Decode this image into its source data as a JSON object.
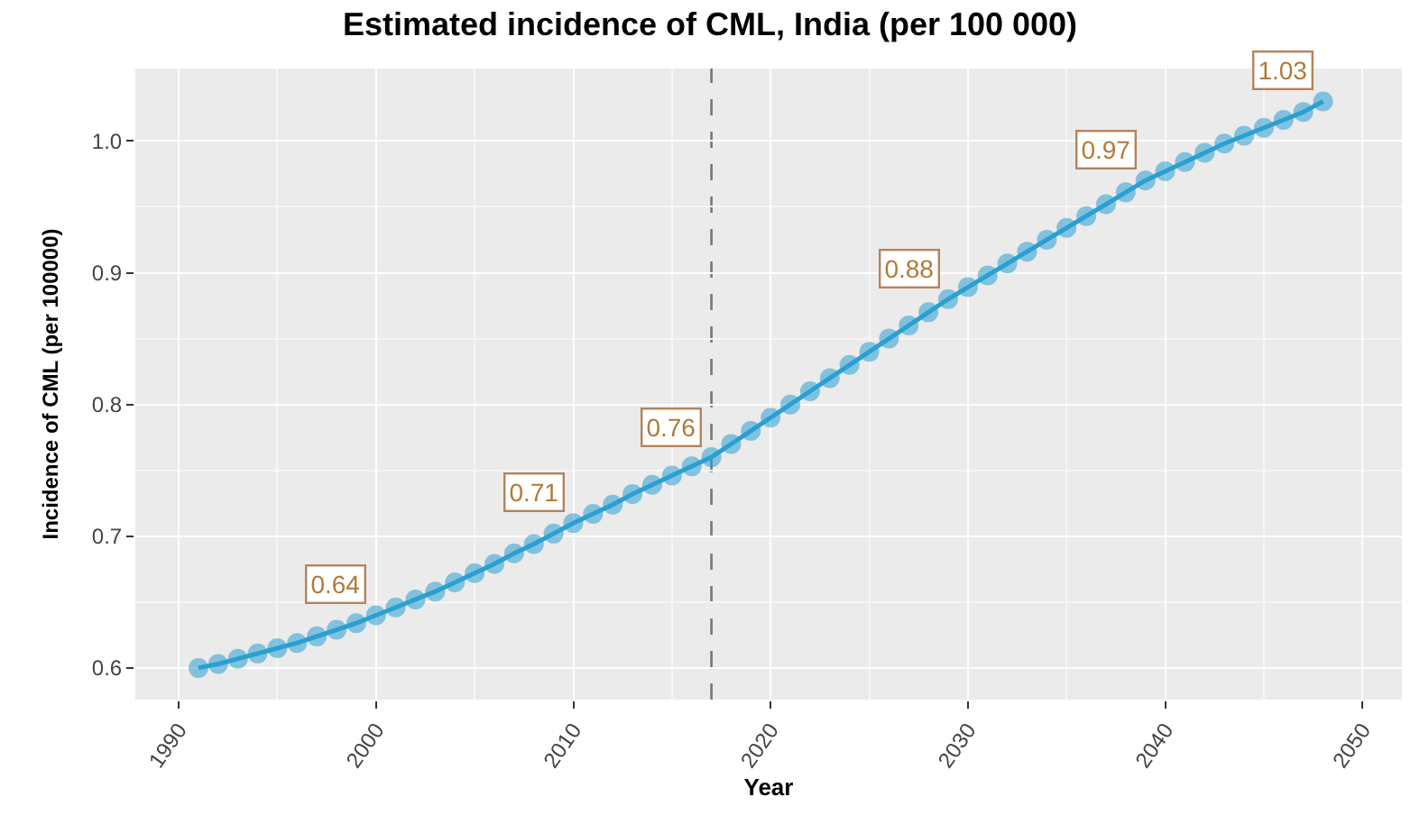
{
  "chart_data": {
    "type": "line",
    "title": "Estimated incidence of CML, India (per 100 000)",
    "xlabel": "Year",
    "ylabel": "Incidence of CML (per 100000)",
    "x": [
      1991,
      1992,
      1993,
      1994,
      1995,
      1996,
      1997,
      1998,
      1999,
      2000,
      2001,
      2002,
      2003,
      2004,
      2005,
      2006,
      2007,
      2008,
      2009,
      2010,
      2011,
      2012,
      2013,
      2014,
      2015,
      2016,
      2017,
      2018,
      2019,
      2020,
      2021,
      2022,
      2023,
      2024,
      2025,
      2026,
      2027,
      2028,
      2029,
      2030,
      2031,
      2032,
      2033,
      2034,
      2035,
      2036,
      2037,
      2038,
      2039,
      2040,
      2041,
      2042,
      2043,
      2044,
      2045,
      2046,
      2047,
      2048
    ],
    "series": [
      {
        "color": "#2a9fd2",
        "values": [
          0.6,
          0.603,
          0.607,
          0.611,
          0.615,
          0.619,
          0.624,
          0.629,
          0.634,
          0.64,
          0.646,
          0.652,
          0.658,
          0.665,
          0.672,
          0.679,
          0.687,
          0.694,
          0.702,
          0.71,
          0.717,
          0.724,
          0.732,
          0.739,
          0.746,
          0.753,
          0.76,
          0.77,
          0.78,
          0.79,
          0.8,
          0.81,
          0.82,
          0.83,
          0.84,
          0.85,
          0.86,
          0.87,
          0.88,
          0.889,
          0.898,
          0.907,
          0.916,
          0.925,
          0.934,
          0.943,
          0.952,
          0.961,
          0.97,
          0.977,
          0.984,
          0.991,
          0.998,
          1.004,
          1.01,
          1.016,
          1.022,
          1.03
        ],
        "value_labels": [
          null,
          null,
          null,
          null,
          null,
          null,
          null,
          null,
          null,
          "0.64",
          null,
          null,
          null,
          null,
          null,
          null,
          null,
          null,
          null,
          "0.71",
          null,
          null,
          null,
          null,
          null,
          null,
          "0.76",
          null,
          null,
          null,
          null,
          null,
          null,
          null,
          null,
          null,
          null,
          null,
          "0.88",
          null,
          null,
          null,
          null,
          null,
          null,
          null,
          null,
          null,
          "0.97",
          null,
          null,
          null,
          null,
          null,
          null,
          null,
          null,
          "1.03"
        ]
      }
    ],
    "xlim": [
      1987.8,
      2052
    ],
    "xticks": [
      1990,
      2000,
      2010,
      2020,
      2030,
      2040,
      2050
    ],
    "ylim": [
      0.576,
      1.055
    ],
    "yticks": [
      {
        "value": 0.6,
        "label": "0.6"
      },
      {
        "value": 0.7,
        "label": "0.7"
      },
      {
        "value": 0.8,
        "label": "0.8"
      },
      {
        "value": 0.9,
        "label": "0.9"
      },
      {
        "value": 1.0,
        "label": "1.0"
      }
    ],
    "ref_lines": [
      {
        "axis": "x",
        "value": 2017,
        "color": "#777777",
        "line_style": "dashed"
      }
    ],
    "grid": true,
    "legend": false,
    "marker": "circle",
    "line_style": "solid"
  }
}
